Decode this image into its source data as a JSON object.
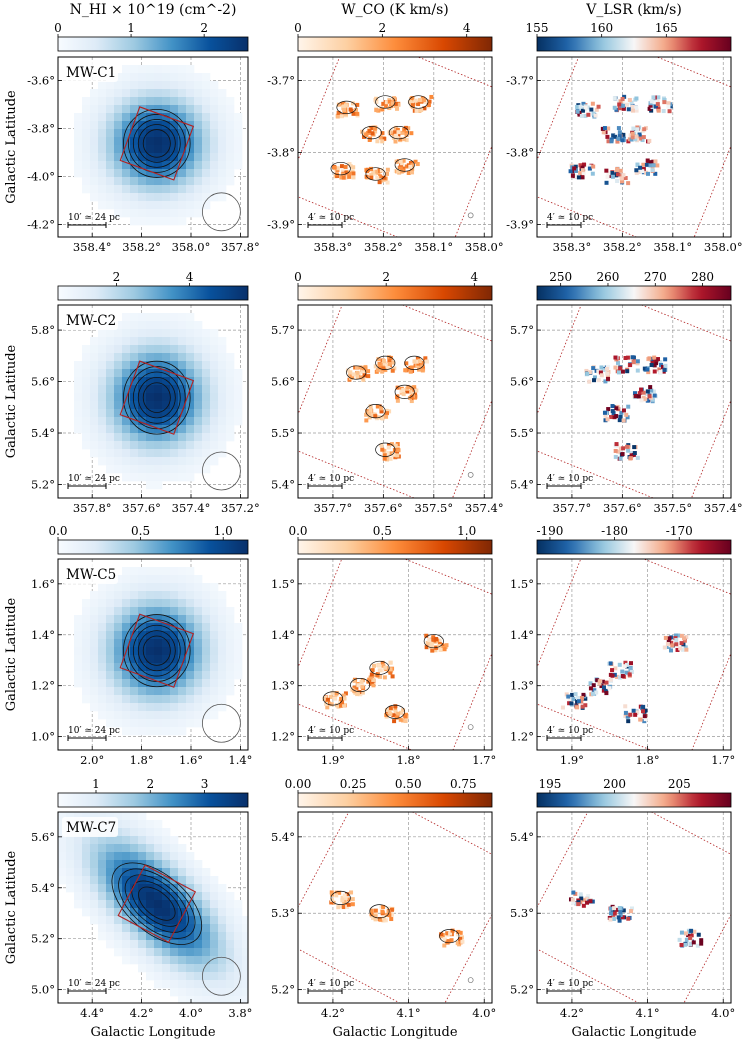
{
  "figure": {
    "y_axis_label": "Galactic Latitude",
    "x_axis_label": "Galactic Longitude"
  },
  "column_titles": {
    "hi": "N_HI × 10^19 (cm^-2)",
    "co": "W_CO (K km/s)",
    "vel": "V_LSR (km/s)"
  },
  "rows": [
    {
      "name": "MW-C1",
      "hi": {
        "cb_ticks": [
          "0",
          "1",
          "2"
        ],
        "cb_range": [
          0,
          2.6
        ],
        "x_ticks": [
          "358.4°",
          "358.2°",
          "358.0°",
          "357.8°"
        ],
        "y_ticks": [
          "-3.6°",
          "-3.8°",
          "-4.0°",
          "-4.2°"
        ],
        "scalebar": "10′ ≃ 24 pc"
      },
      "co": {
        "cb_ticks": [
          "0",
          "2",
          "4"
        ],
        "cb_range": [
          0,
          4.6
        ],
        "x_ticks": [
          "358.3°",
          "358.2°",
          "358.1°",
          "358.0°"
        ],
        "y_ticks": [
          "-3.7°",
          "-3.8°",
          "-3.9°"
        ],
        "scalebar": "4′ ≃ 10 pc"
      },
      "vel": {
        "cb_ticks": [
          "155",
          "160",
          "165"
        ],
        "cb_range": [
          155,
          170
        ],
        "x_ticks": [
          "358.3°",
          "358.2°",
          "358.1°",
          "358.0°"
        ],
        "y_ticks": [
          "-3.7°",
          "-3.8°",
          "-3.9°"
        ],
        "scalebar": "4′ ≃ 10 pc"
      }
    },
    {
      "name": "MW-C2",
      "hi": {
        "cb_ticks": [
          "2",
          "4"
        ],
        "cb_range": [
          0.4,
          5.6
        ],
        "x_ticks": [
          "357.8°",
          "357.6°",
          "357.4°",
          "357.2°"
        ],
        "y_ticks": [
          "5.8°",
          "5.6°",
          "5.4°",
          "5.2°"
        ],
        "scalebar": "10′ ≃ 24 pc"
      },
      "co": {
        "cb_ticks": [
          "0",
          "2",
          "4"
        ],
        "cb_range": [
          0,
          4.4
        ],
        "x_ticks": [
          "357.7°",
          "357.6°",
          "357.5°",
          "357.4°"
        ],
        "y_ticks": [
          "5.7°",
          "5.6°",
          "5.5°",
          "5.4°"
        ],
        "scalebar": "4′ ≃ 10 pc"
      },
      "vel": {
        "cb_ticks": [
          "250",
          "260",
          "270",
          "280"
        ],
        "cb_range": [
          245,
          286
        ],
        "x_ticks": [
          "357.7°",
          "357.6°",
          "357.5°",
          "357.4°"
        ],
        "y_ticks": [
          "5.7°",
          "5.6°",
          "5.5°",
          "5.4°"
        ],
        "scalebar": "4′ ≃ 10 pc"
      }
    },
    {
      "name": "MW-C5",
      "hi": {
        "cb_ticks": [
          "0.0",
          "0.5",
          "1.0"
        ],
        "cb_range": [
          0,
          1.15
        ],
        "x_ticks": [
          "2.0°",
          "1.8°",
          "1.6°",
          "1.4°"
        ],
        "y_ticks": [
          "1.6°",
          "1.4°",
          "1.2°",
          "1.0°"
        ],
        "scalebar": "10′ ≃ 24 pc"
      },
      "co": {
        "cb_ticks": [
          "0.0",
          "0.5",
          "1.0"
        ],
        "cb_range": [
          0,
          1.15
        ],
        "x_ticks": [
          "1.9°",
          "1.8°",
          "1.7°"
        ],
        "y_ticks": [
          "1.5°",
          "1.4°",
          "1.3°",
          "1.2°"
        ],
        "scalebar": "4′ ≃ 10 pc"
      },
      "vel": {
        "cb_ticks": [
          "-190",
          "-180",
          "-170"
        ],
        "cb_range": [
          -192,
          -162
        ],
        "x_ticks": [
          "1.9°",
          "1.8°",
          "1.7°"
        ],
        "y_ticks": [
          "1.5°",
          "1.4°",
          "1.3°",
          "1.2°"
        ],
        "scalebar": "4′ ≃ 10 pc"
      }
    },
    {
      "name": "MW-C7",
      "hi": {
        "cb_ticks": [
          "1",
          "2",
          "3"
        ],
        "cb_range": [
          0.3,
          3.8
        ],
        "x_ticks": [
          "4.4°",
          "4.2°",
          "4.0°",
          "3.8°"
        ],
        "y_ticks": [
          "5.6°",
          "5.4°",
          "5.2°",
          "5.0°"
        ],
        "scalebar": "10′ ≃ 24 pc"
      },
      "co": {
        "cb_ticks": [
          "0.00",
          "0.25",
          "0.50",
          "0.75"
        ],
        "cb_range": [
          0,
          0.88
        ],
        "x_ticks": [
          "4.2°",
          "4.1°",
          "4.0°"
        ],
        "y_ticks": [
          "5.4°",
          "5.3°",
          "5.2°"
        ],
        "scalebar": "4′ ≃ 10 pc"
      },
      "vel": {
        "cb_ticks": [
          "195",
          "200",
          "205"
        ],
        "cb_range": [
          194,
          209
        ],
        "x_ticks": [
          "4.2°",
          "4.1°",
          "4.0°"
        ],
        "y_ticks": [
          "5.4°",
          "5.3°",
          "5.2°"
        ],
        "scalebar": "4′ ≃ 10 pc"
      }
    }
  ],
  "chart_data": {
    "type": "heatmap",
    "layout": "4 rows × 3 columns of sky maps",
    "columns": [
      "HI column density",
      "CO integrated intensity",
      "CO velocity field"
    ],
    "colormaps": {
      "hi": "Blues",
      "co": "Oranges",
      "vel": "RdBu_r"
    },
    "contour_color": "#000000",
    "footprint_color": "#b22222",
    "grid": true
  }
}
